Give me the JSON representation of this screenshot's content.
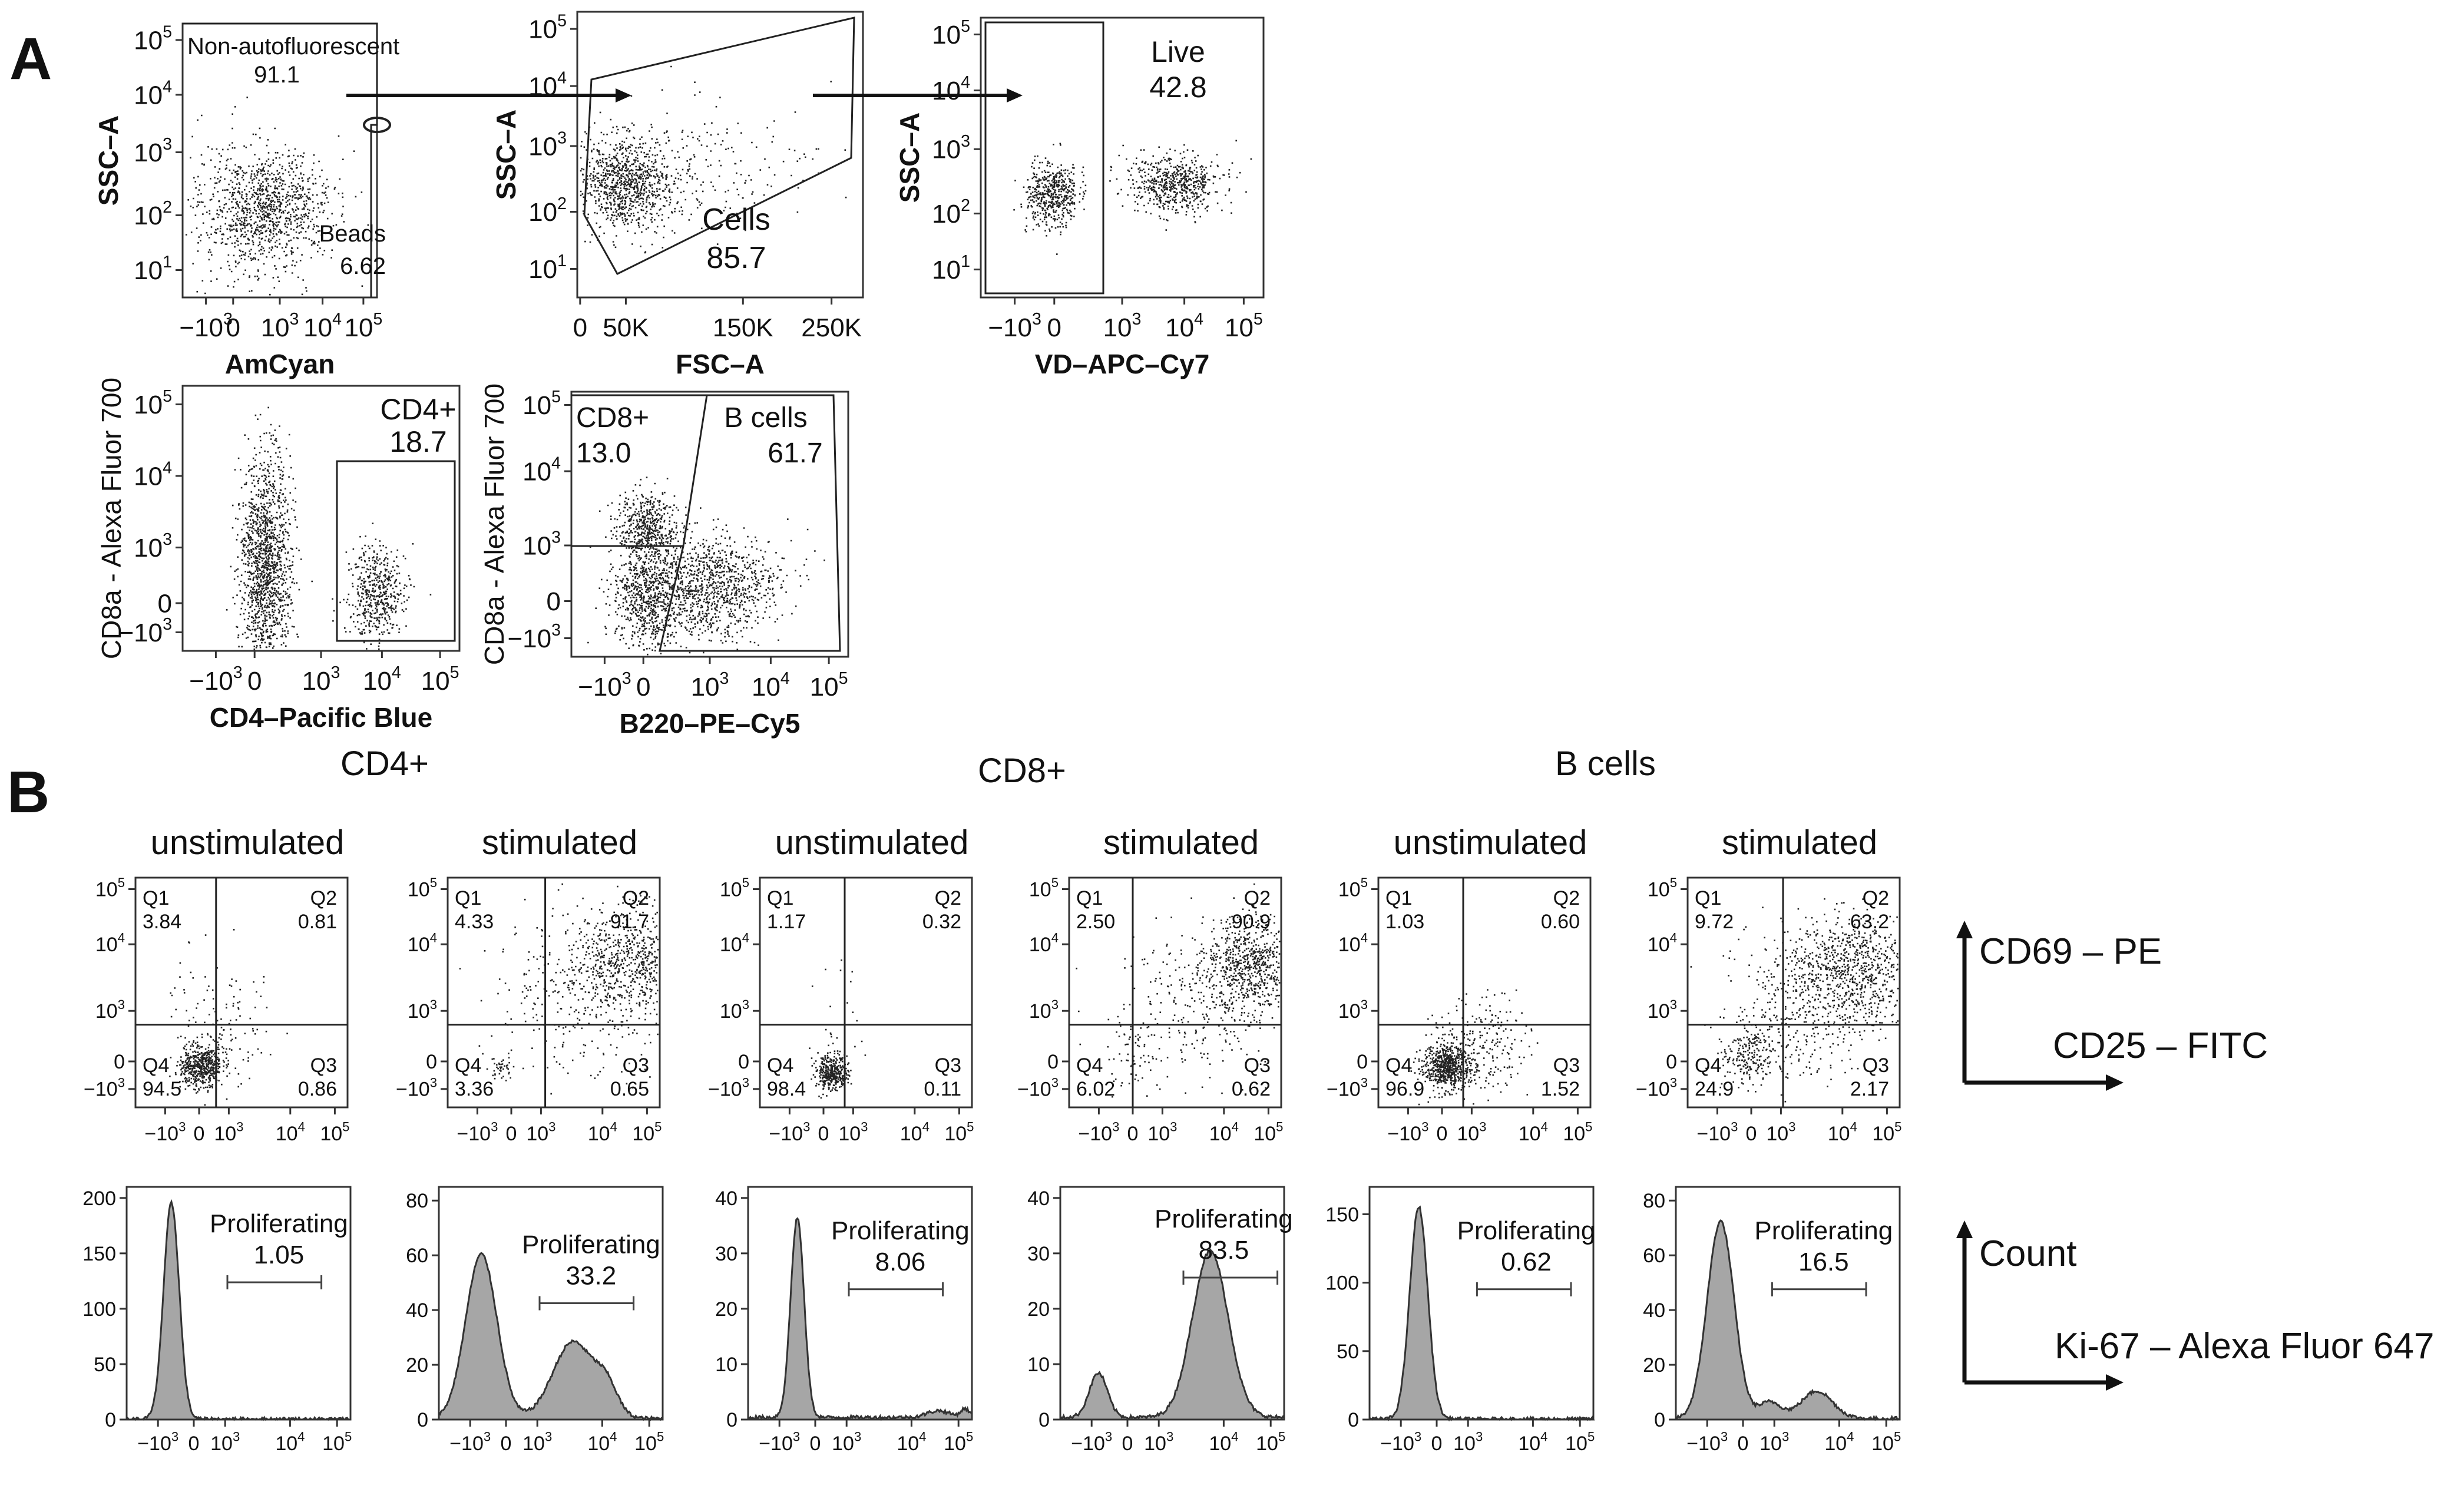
{
  "figure": {
    "panels": {
      "a": "A",
      "b": "B"
    },
    "group_titles": {
      "cd4": "CD4+",
      "cd8": "CD8+",
      "bcells": "B cells"
    },
    "legend_cd": {
      "y": "CD69 – PE",
      "x": "CD25 – FITC"
    },
    "legend_hist": {
      "y": "Count",
      "x": "Ki-67 – Alexa Fluor 647"
    }
  },
  "chart_data": [
    {
      "id": "a1",
      "type": "scatter",
      "panel": "A",
      "title": "",
      "xlabel": "AmCyan",
      "ylabel": "SSC–A",
      "xticks": [
        "-10^3",
        "0",
        "10^3",
        "10^4",
        "10^5"
      ],
      "yticks": [
        "10^1",
        "10^2",
        "10^3",
        "10^4",
        "10^5"
      ],
      "gates": [
        {
          "name": "Non-autofluorescent",
          "value": "91.1"
        },
        {
          "name": "Beads",
          "value": "6.62"
        }
      ]
    },
    {
      "id": "a2",
      "type": "scatter",
      "panel": "A",
      "title": "",
      "xlabel": "FSC–A",
      "ylabel": "SSC–A",
      "xticks": [
        "0",
        "50K",
        "150K",
        "250K"
      ],
      "yticks": [
        "10^1",
        "10^2",
        "10^3",
        "10^4",
        "10^5"
      ],
      "gates": [
        {
          "name": "Cells",
          "value": "85.7"
        }
      ]
    },
    {
      "id": "a3",
      "type": "scatter",
      "panel": "A",
      "title": "",
      "xlabel": "VD–APC–Cy7",
      "ylabel": "SSC–A",
      "xticks": [
        "-10^3",
        "0",
        "10^3",
        "10^4",
        "10^5"
      ],
      "yticks": [
        "10^1",
        "10^2",
        "10^3",
        "10^4",
        "10^5"
      ],
      "gates": [
        {
          "name": "Live",
          "value": "42.8"
        }
      ]
    },
    {
      "id": "a4",
      "type": "scatter",
      "panel": "A",
      "title": "",
      "xlabel": "CD4–Pacific Blue",
      "ylabel": "CD8a - Alexa Fluor 700",
      "xticks": [
        "-10^3",
        "0",
        "10^3",
        "10^4",
        "10^5"
      ],
      "yticks": [
        "-10^3",
        "0",
        "10^3",
        "10^4",
        "10^5"
      ],
      "gates": [
        {
          "name": "CD4+",
          "value": "18.7"
        }
      ]
    },
    {
      "id": "a5",
      "type": "scatter",
      "panel": "A",
      "title": "",
      "xlabel": "B220–PE–Cy5",
      "ylabel": "CD8a - Alexa Fluor 700",
      "xticks": [
        "-10^3",
        "0",
        "10^3",
        "10^4",
        "10^5"
      ],
      "yticks": [
        "-10^3",
        "0",
        "10^3",
        "10^4",
        "10^5"
      ],
      "gates": [
        {
          "name": "CD8+",
          "value": "13.0"
        },
        {
          "name": "B cells",
          "value": "61.7"
        }
      ]
    },
    {
      "id": "b1",
      "type": "scatter",
      "panel": "B",
      "group": "CD4+",
      "title": "unstimulated",
      "xlabel": "",
      "ylabel": "",
      "xticks": [
        "-10^3",
        "0",
        "10^3",
        "10^4",
        "10^5"
      ],
      "yticks": [
        "-10^3",
        "0",
        "10^3",
        "10^4",
        "10^5"
      ],
      "quadrants": [
        {
          "name": "Q1",
          "value": "3.84"
        },
        {
          "name": "Q2",
          "value": "0.81"
        },
        {
          "name": "Q3",
          "value": "0.86"
        },
        {
          "name": "Q4",
          "value": "94.5"
        }
      ]
    },
    {
      "id": "b2",
      "type": "scatter",
      "panel": "B",
      "group": "CD4+",
      "title": "stimulated",
      "xlabel": "",
      "ylabel": "",
      "xticks": [
        "-10^3",
        "0",
        "10^3",
        "10^4",
        "10^5"
      ],
      "yticks": [
        "-10^3",
        "0",
        "10^3",
        "10^4",
        "10^5"
      ],
      "quadrants": [
        {
          "name": "Q1",
          "value": "4.33"
        },
        {
          "name": "Q2",
          "value": "91.7"
        },
        {
          "name": "Q3",
          "value": "0.65"
        },
        {
          "name": "Q4",
          "value": "3.36"
        }
      ]
    },
    {
      "id": "b3",
      "type": "scatter",
      "panel": "B",
      "group": "CD8+",
      "title": "unstimulated",
      "xlabel": "",
      "ylabel": "",
      "xticks": [
        "-10^3",
        "0",
        "10^3",
        "10^4",
        "10^5"
      ],
      "yticks": [
        "-10^3",
        "0",
        "10^3",
        "10^4",
        "10^5"
      ],
      "quadrants": [
        {
          "name": "Q1",
          "value": "1.17"
        },
        {
          "name": "Q2",
          "value": "0.32"
        },
        {
          "name": "Q3",
          "value": "0.11"
        },
        {
          "name": "Q4",
          "value": "98.4"
        }
      ]
    },
    {
      "id": "b4",
      "type": "scatter",
      "panel": "B",
      "group": "CD8+",
      "title": "stimulated",
      "xlabel": "",
      "ylabel": "",
      "xticks": [
        "-10^3",
        "0",
        "10^3",
        "10^4",
        "10^5"
      ],
      "yticks": [
        "-10^3",
        "0",
        "10^3",
        "10^4",
        "10^5"
      ],
      "quadrants": [
        {
          "name": "Q1",
          "value": "2.50"
        },
        {
          "name": "Q2",
          "value": "90.9"
        },
        {
          "name": "Q3",
          "value": "0.62"
        },
        {
          "name": "Q4",
          "value": "6.02"
        }
      ]
    },
    {
      "id": "b5",
      "type": "scatter",
      "panel": "B",
      "group": "B cells",
      "title": "unstimulated",
      "xlabel": "",
      "ylabel": "",
      "xticks": [
        "-10^3",
        "0",
        "10^3",
        "10^4",
        "10^5"
      ],
      "yticks": [
        "-10^3",
        "0",
        "10^3",
        "10^4",
        "10^5"
      ],
      "quadrants": [
        {
          "name": "Q1",
          "value": "1.03"
        },
        {
          "name": "Q2",
          "value": "0.60"
        },
        {
          "name": "Q3",
          "value": "1.52"
        },
        {
          "name": "Q4",
          "value": "96.9"
        }
      ]
    },
    {
      "id": "b6",
      "type": "scatter",
      "panel": "B",
      "group": "B cells",
      "title": "stimulated",
      "xlabel": "",
      "ylabel": "",
      "xticks": [
        "-10^3",
        "0",
        "10^3",
        "10^4",
        "10^5"
      ],
      "yticks": [
        "-10^3",
        "0",
        "10^3",
        "10^4",
        "10^5"
      ],
      "quadrants": [
        {
          "name": "Q1",
          "value": "9.72"
        },
        {
          "name": "Q2",
          "value": "63.2"
        },
        {
          "name": "Q3",
          "value": "2.17"
        },
        {
          "name": "Q4",
          "value": "24.9"
        }
      ]
    },
    {
      "id": "h1",
      "type": "area",
      "panel": "B",
      "group": "CD4+",
      "condition": "unstimulated",
      "xticks": [
        "-10^3",
        "0",
        "10^3",
        "10^4",
        "10^5"
      ],
      "yticks": [
        "0",
        "50",
        "100",
        "150",
        "200"
      ],
      "ylim": [
        0,
        210
      ],
      "gate": {
        "name": "Proliferating",
        "value": "1.05"
      }
    },
    {
      "id": "h2",
      "type": "area",
      "panel": "B",
      "group": "CD4+",
      "condition": "stimulated",
      "xticks": [
        "-10^3",
        "0",
        "10^3",
        "10^4",
        "10^5"
      ],
      "yticks": [
        "0",
        "20",
        "40",
        "60",
        "80"
      ],
      "ylim": [
        0,
        85
      ],
      "gate": {
        "name": "Proliferating",
        "value": "33.2"
      }
    },
    {
      "id": "h3",
      "type": "area",
      "panel": "B",
      "group": "CD8+",
      "condition": "unstimulated",
      "xticks": [
        "-10^3",
        "0",
        "10^3",
        "10^4",
        "10^5"
      ],
      "yticks": [
        "0",
        "10",
        "20",
        "30",
        "40"
      ],
      "ylim": [
        0,
        42
      ],
      "gate": {
        "name": "Proliferating",
        "value": "8.06"
      }
    },
    {
      "id": "h4",
      "type": "area",
      "panel": "B",
      "group": "CD8+",
      "condition": "stimulated",
      "xticks": [
        "-10^3",
        "0",
        "10^3",
        "10^4",
        "10^5"
      ],
      "yticks": [
        "0",
        "10",
        "20",
        "30",
        "40"
      ],
      "ylim": [
        0,
        42
      ],
      "gate": {
        "name": "Proliferating",
        "value": "83.5"
      }
    },
    {
      "id": "h5",
      "type": "area",
      "panel": "B",
      "group": "B cells",
      "condition": "unstimulated",
      "xticks": [
        "-10^3",
        "0",
        "10^3",
        "10^4",
        "10^5"
      ],
      "yticks": [
        "0",
        "50",
        "100",
        "150"
      ],
      "ylim": [
        0,
        170
      ],
      "gate": {
        "name": "Proliferating",
        "value": "0.62"
      }
    },
    {
      "id": "h6",
      "type": "area",
      "panel": "B",
      "group": "B cells",
      "condition": "stimulated",
      "xticks": [
        "-10^3",
        "0",
        "10^3",
        "10^4",
        "10^5"
      ],
      "yticks": [
        "0",
        "20",
        "40",
        "60",
        "80"
      ],
      "ylim": [
        0,
        85
      ],
      "gate": {
        "name": "Proliferating",
        "value": "16.5"
      }
    }
  ]
}
